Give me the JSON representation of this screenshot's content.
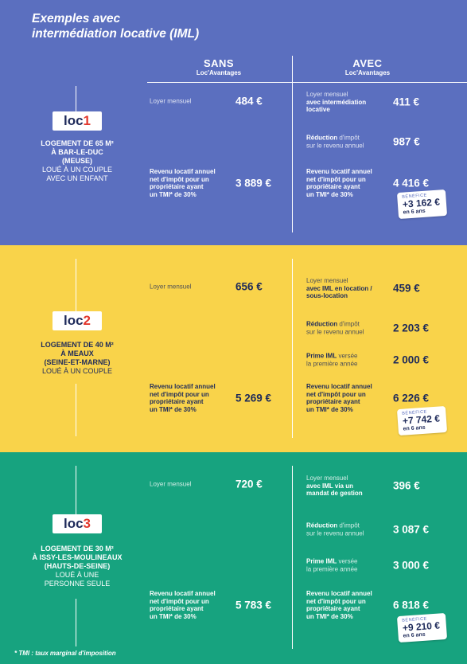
{
  "header": {
    "title": [
      "Exemples avec",
      "intermédiation locative (IML)"
    ]
  },
  "columns": {
    "sans": {
      "title": "SANS",
      "subtitle": "Loc'Avantages"
    },
    "avec": {
      "title": "AVEC",
      "subtitle": "Loc'Avantages"
    }
  },
  "sections": [
    {
      "badge": {
        "text": "loc",
        "number": "1"
      },
      "description": {
        "bold": [
          "LOGEMENT DE 65 M²",
          "À BAR-LE-DUC",
          "(MEUSE)"
        ],
        "normal": [
          "LOUÉ À UN COUPLE",
          "AVEC UN ENFANT"
        ]
      },
      "sans": [
        {
          "label": [
            [
              {
                "text": "Loyer mensuel",
                "bold": false
              }
            ]
          ],
          "value": "484 €"
        },
        {
          "label": [
            [
              {
                "text": "Revenu locatif annuel",
                "bold": true
              }
            ],
            [
              {
                "text": "net d'impôt pour un",
                "bold": true
              }
            ],
            [
              {
                "text": "propriétaire ayant",
                "bold": true
              }
            ],
            [
              {
                "text": "un TMI* de 30%",
                "bold": true
              }
            ]
          ],
          "value": "3 889 €"
        }
      ],
      "avec": [
        {
          "label": [
            [
              {
                "text": "Loyer mensuel",
                "bold": false
              }
            ],
            [
              {
                "text": "avec intermédiation",
                "bold": true
              }
            ],
            [
              {
                "text": "locative",
                "bold": true
              }
            ]
          ],
          "value": "411 €"
        },
        {
          "label": [
            [
              {
                "text": "Réduction",
                "bold": true
              },
              {
                "text": " d'impôt",
                "bold": false
              }
            ],
            [
              {
                "text": "sur le revenu annuel",
                "bold": false
              }
            ]
          ],
          "value": "987 €"
        },
        {
          "label": [
            [
              {
                "text": "Revenu locatif annuel",
                "bold": true
              }
            ],
            [
              {
                "text": "net d'impôt pour un",
                "bold": true
              }
            ],
            [
              {
                "text": "propriétaire ayant",
                "bold": true
              }
            ],
            [
              {
                "text": "un TMI* de 30%",
                "bold": true
              }
            ]
          ],
          "value": "4 416 €"
        }
      ],
      "benefit": {
        "label": "BÉNÉFICE",
        "amount": "+3 162 €",
        "period": "en 6 ans"
      }
    },
    {
      "badge": {
        "text": "loc",
        "number": "2"
      },
      "description": {
        "bold": [
          "LOGEMENT DE 40 M²",
          "À MEAUX",
          "(SEINE-ET-MARNE)"
        ],
        "normal": [
          "LOUÉ À UN COUPLE"
        ]
      },
      "sans": [
        {
          "label": [
            [
              {
                "text": "Loyer mensuel",
                "bold": false
              }
            ]
          ],
          "value": "656 €"
        },
        {
          "label": [
            [
              {
                "text": "Revenu locatif annuel",
                "bold": true
              }
            ],
            [
              {
                "text": "net d'impôt pour un",
                "bold": true
              }
            ],
            [
              {
                "text": "propriétaire ayant",
                "bold": true
              }
            ],
            [
              {
                "text": "un TMI* de 30%",
                "bold": true
              }
            ]
          ],
          "value": "5 269 €"
        }
      ],
      "avec": [
        {
          "label": [
            [
              {
                "text": "Loyer mensuel",
                "bold": false
              }
            ],
            [
              {
                "text": "avec IML en location /",
                "bold": true
              }
            ],
            [
              {
                "text": "sous-location",
                "bold": true
              }
            ]
          ],
          "value": "459 €"
        },
        {
          "label": [
            [
              {
                "text": "Réduction",
                "bold": true
              },
              {
                "text": " d'impôt",
                "bold": false
              }
            ],
            [
              {
                "text": "sur le revenu annuel",
                "bold": false
              }
            ]
          ],
          "value": "2 203 €"
        },
        {
          "label": [
            [
              {
                "text": "Prime IML",
                "bold": true
              },
              {
                "text": " versée",
                "bold": false
              }
            ],
            [
              {
                "text": "la première année",
                "bold": false
              }
            ]
          ],
          "value": "2 000 €"
        },
        {
          "label": [
            [
              {
                "text": "Revenu locatif annuel",
                "bold": true
              }
            ],
            [
              {
                "text": "net d'impôt pour un",
                "bold": true
              }
            ],
            [
              {
                "text": "propriétaire ayant",
                "bold": true
              }
            ],
            [
              {
                "text": "un TMI* de 30%",
                "bold": true
              }
            ]
          ],
          "value": "6 226 €"
        }
      ],
      "benefit": {
        "label": "BÉNÉFICE",
        "amount": "+7 742 €",
        "period": "en 6 ans"
      }
    },
    {
      "badge": {
        "text": "loc",
        "number": "3"
      },
      "description": {
        "bold": [
          "LOGEMENT DE 30 M²",
          "À ISSY-LES-MOULINEAUX",
          "(HAUTS-DE-SEINE)"
        ],
        "normal": [
          "LOUÉ À UNE",
          "PERSONNE SEULE"
        ]
      },
      "sans": [
        {
          "label": [
            [
              {
                "text": "Loyer mensuel",
                "bold": false
              }
            ]
          ],
          "value": "720 €"
        },
        {
          "label": [
            [
              {
                "text": "Revenu locatif annuel",
                "bold": true
              }
            ],
            [
              {
                "text": "net d'impôt pour un",
                "bold": true
              }
            ],
            [
              {
                "text": "propriétaire ayant",
                "bold": true
              }
            ],
            [
              {
                "text": "un TMI* de 30%",
                "bold": true
              }
            ]
          ],
          "value": "5 783 €"
        }
      ],
      "avec": [
        {
          "label": [
            [
              {
                "text": "Loyer mensuel",
                "bold": false
              }
            ],
            [
              {
                "text": "avec IML via un",
                "bold": true
              }
            ],
            [
              {
                "text": "mandat de gestion",
                "bold": true
              }
            ]
          ],
          "value": "396 €"
        },
        {
          "label": [
            [
              {
                "text": "Réduction",
                "bold": true
              },
              {
                "text": " d'impôt",
                "bold": false
              }
            ],
            [
              {
                "text": "sur le revenu annuel",
                "bold": false
              }
            ]
          ],
          "value": "3 087 €"
        },
        {
          "label": [
            [
              {
                "text": "Prime IML",
                "bold": true
              },
              {
                "text": " versée",
                "bold": false
              }
            ],
            [
              {
                "text": "la première année",
                "bold": false
              }
            ]
          ],
          "value": "3 000 €"
        },
        {
          "label": [
            [
              {
                "text": "Revenu locatif annuel",
                "bold": true
              }
            ],
            [
              {
                "text": "net d'impôt pour un",
                "bold": true
              }
            ],
            [
              {
                "text": "propriétaire ayant",
                "bold": true
              }
            ],
            [
              {
                "text": "un TMI* de 30%",
                "bold": true
              }
            ]
          ],
          "value": "6 818 €"
        }
      ],
      "benefit": {
        "label": "BÉNÉFICE",
        "amount": "+9 210 €",
        "period": "en 6 ans"
      }
    }
  ],
  "footnote": "* TMI : taux marginal d'imposition"
}
